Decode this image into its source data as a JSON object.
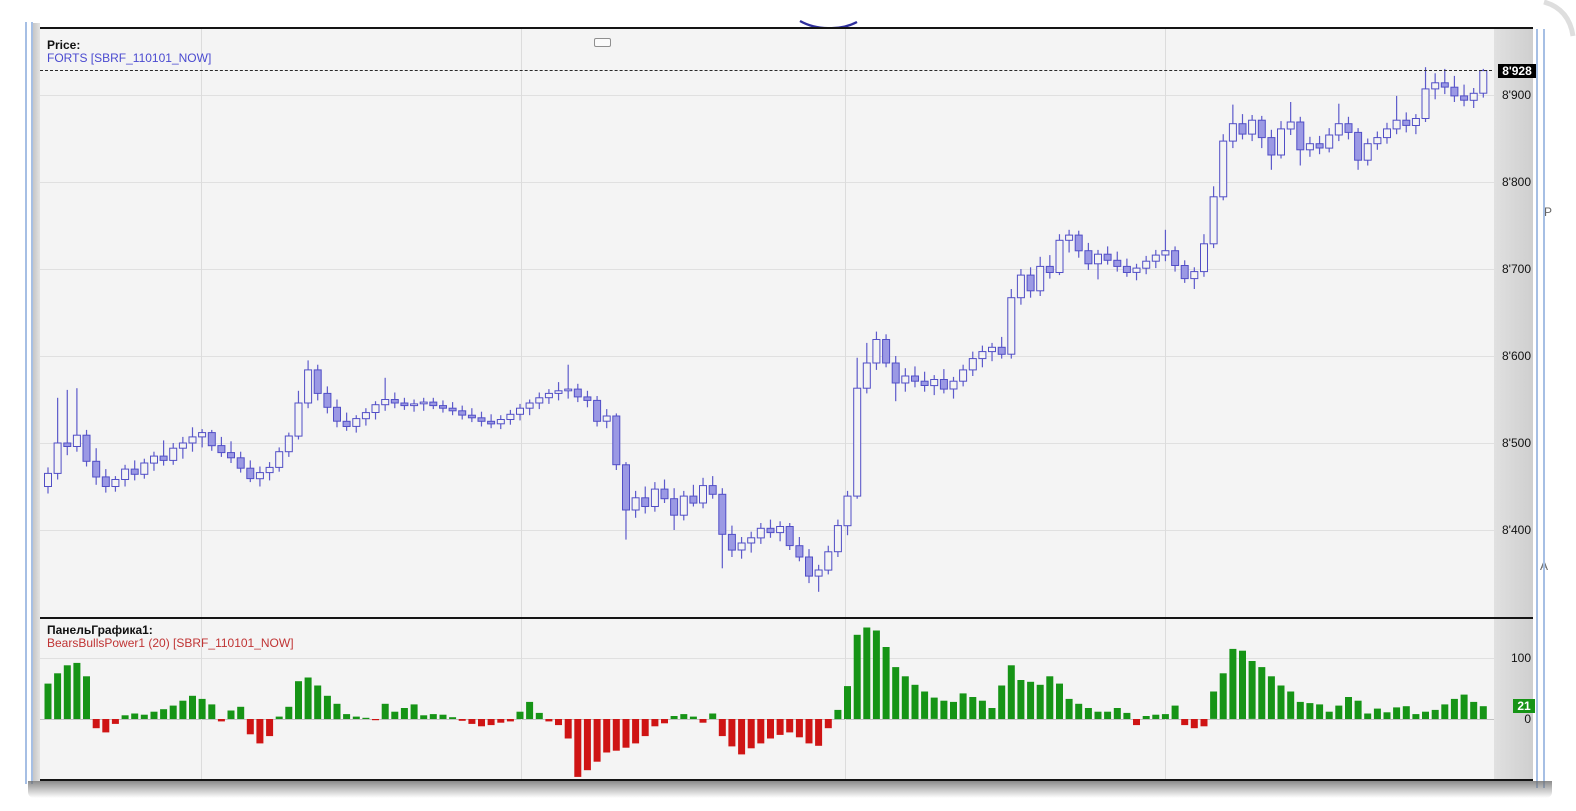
{
  "window": {
    "price_panel": {
      "title": "Price:",
      "series_label": "FORTS [SBRF_110101_NOW]",
      "series_color": "#4a4ad0"
    },
    "indicator_panel": {
      "title": "ПанельГрафика1:",
      "series_label": "BearsBullsPower1 (20) [SBRF_110101_NOW]",
      "series_color": "#c03434"
    },
    "price_axis": {
      "tick_labels": [
        "8'900",
        "8'800",
        "8'700",
        "8'600",
        "8'500",
        "8'400"
      ],
      "tick_values": [
        8900,
        8800,
        8700,
        8600,
        8500,
        8400
      ],
      "current_label": "8'928",
      "current_value": 8928
    },
    "indicator_axis": {
      "tick_labels": [
        "100",
        "0"
      ],
      "tick_values": [
        100,
        0
      ],
      "current_label": "21",
      "current_value": 21
    }
  },
  "background": {
    "fragments": [
      {
        "text": "P"
      },
      {
        "text": "A"
      }
    ]
  },
  "colors": {
    "bull_bar": "#169416",
    "bear_bar": "#cf1414",
    "candle_stroke": "#514ec6",
    "candle_wick": "#5d5acb",
    "candle_fill_down": "#9b99e4",
    "candle_fill_up": "#f4f4f4",
    "price_badge_bg": "#000000",
    "indicator_badge_bg": "#169416",
    "grid": "#e0e0e0",
    "accent_arc": "#2f2f9d"
  },
  "chart_data": [
    {
      "type": "candlestick",
      "title": "Price",
      "series": "FORTS [SBRF_110101_NOW]",
      "ylabel": "price",
      "ylim": [
        8330,
        8940
      ],
      "y_ticks": [
        8400,
        8500,
        8600,
        8700,
        8800,
        8900
      ],
      "grid": "on",
      "last_price": 8928,
      "ohlc": [
        [
          8450,
          8472,
          8442,
          8465
        ],
        [
          8465,
          8552,
          8458,
          8500
        ],
        [
          8500,
          8561,
          8486,
          8496
        ],
        [
          8496,
          8563,
          8490,
          8509
        ],
        [
          8509,
          8515,
          8473,
          8479
        ],
        [
          8479,
          8494,
          8452,
          8461
        ],
        [
          8461,
          8470,
          8443,
          8450
        ],
        [
          8450,
          8462,
          8444,
          8458
        ],
        [
          8458,
          8475,
          8450,
          8470
        ],
        [
          8470,
          8480,
          8457,
          8464
        ],
        [
          8464,
          8482,
          8459,
          8477
        ],
        [
          8477,
          8490,
          8468,
          8485
        ],
        [
          8485,
          8503,
          8474,
          8480
        ],
        [
          8480,
          8500,
          8475,
          8494
        ],
        [
          8494,
          8507,
          8482,
          8500
        ],
        [
          8500,
          8518,
          8490,
          8507
        ],
        [
          8507,
          8516,
          8495,
          8512
        ],
        [
          8512,
          8515,
          8491,
          8497
        ],
        [
          8497,
          8507,
          8484,
          8489
        ],
        [
          8489,
          8502,
          8477,
          8483
        ],
        [
          8483,
          8490,
          8466,
          8471
        ],
        [
          8471,
          8480,
          8455,
          8459
        ],
        [
          8459,
          8473,
          8450,
          8466
        ],
        [
          8466,
          8478,
          8457,
          8472
        ],
        [
          8472,
          8495,
          8467,
          8490
        ],
        [
          8490,
          8512,
          8484,
          8508
        ],
        [
          8508,
          8560,
          8504,
          8546
        ],
        [
          8546,
          8595,
          8540,
          8584
        ],
        [
          8584,
          8590,
          8549,
          8557
        ],
        [
          8557,
          8565,
          8534,
          8541
        ],
        [
          8541,
          8550,
          8518,
          8525
        ],
        [
          8525,
          8535,
          8514,
          8519
        ],
        [
          8519,
          8532,
          8512,
          8528
        ],
        [
          8528,
          8540,
          8520,
          8535
        ],
        [
          8535,
          8548,
          8527,
          8544
        ],
        [
          8544,
          8575,
          8537,
          8550
        ],
        [
          8550,
          8558,
          8540,
          8546
        ],
        [
          8546,
          8552,
          8538,
          8543
        ],
        [
          8543,
          8550,
          8536,
          8545
        ],
        [
          8545,
          8552,
          8537,
          8547
        ],
        [
          8547,
          8552,
          8539,
          8543
        ],
        [
          8543,
          8549,
          8535,
          8540
        ],
        [
          8540,
          8547,
          8532,
          8537
        ],
        [
          8537,
          8543,
          8527,
          8532
        ],
        [
          8532,
          8540,
          8524,
          8529
        ],
        [
          8529,
          8536,
          8519,
          8525
        ],
        [
          8525,
          8533,
          8517,
          8522
        ],
        [
          8522,
          8532,
          8516,
          8527
        ],
        [
          8527,
          8538,
          8521,
          8533
        ],
        [
          8533,
          8545,
          8526,
          8540
        ],
        [
          8540,
          8550,
          8532,
          8546
        ],
        [
          8546,
          8558,
          8539,
          8552
        ],
        [
          8552,
          8562,
          8545,
          8557
        ],
        [
          8557,
          8570,
          8549,
          8560
        ],
        [
          8560,
          8590,
          8551,
          8562
        ],
        [
          8562,
          8568,
          8547,
          8553
        ],
        [
          8553,
          8560,
          8541,
          8549
        ],
        [
          8549,
          8554,
          8519,
          8525
        ],
        [
          8525,
          8539,
          8517,
          8531
        ],
        [
          8531,
          8534,
          8469,
          8475
        ],
        [
          8475,
          8478,
          8389,
          8423
        ],
        [
          8423,
          8445,
          8414,
          8437
        ],
        [
          8437,
          8450,
          8419,
          8427
        ],
        [
          8427,
          8455,
          8421,
          8447
        ],
        [
          8447,
          8458,
          8431,
          8436
        ],
        [
          8436,
          8448,
          8400,
          8417
        ],
        [
          8417,
          8445,
          8411,
          8439
        ],
        [
          8439,
          8452,
          8427,
          8431
        ],
        [
          8431,
          8460,
          8425,
          8451
        ],
        [
          8451,
          8462,
          8436,
          8441
        ],
        [
          8441,
          8448,
          8356,
          8395
        ],
        [
          8395,
          8405,
          8369,
          8377
        ],
        [
          8377,
          8392,
          8367,
          8385
        ],
        [
          8385,
          8398,
          8374,
          8391
        ],
        [
          8391,
          8408,
          8384,
          8402
        ],
        [
          8402,
          8412,
          8391,
          8397
        ],
        [
          8397,
          8410,
          8387,
          8404
        ],
        [
          8404,
          8408,
          8377,
          8382
        ],
        [
          8382,
          8392,
          8364,
          8369
        ],
        [
          8369,
          8378,
          8339,
          8347
        ],
        [
          8347,
          8360,
          8329,
          8354
        ],
        [
          8354,
          8382,
          8349,
          8375
        ],
        [
          8375,
          8412,
          8369,
          8405
        ],
        [
          8405,
          8445,
          8394,
          8439
        ],
        [
          8439,
          8598,
          8436,
          8563
        ],
        [
          8563,
          8615,
          8557,
          8592
        ],
        [
          8592,
          8628,
          8584,
          8619
        ],
        [
          8619,
          8625,
          8587,
          8592
        ],
        [
          8592,
          8600,
          8548,
          8569
        ],
        [
          8569,
          8586,
          8559,
          8577
        ],
        [
          8577,
          8588,
          8564,
          8571
        ],
        [
          8571,
          8582,
          8559,
          8566
        ],
        [
          8566,
          8578,
          8555,
          8573
        ],
        [
          8573,
          8585,
          8557,
          8562
        ],
        [
          8562,
          8576,
          8551,
          8571
        ],
        [
          8571,
          8590,
          8565,
          8584
        ],
        [
          8584,
          8605,
          8577,
          8597
        ],
        [
          8597,
          8612,
          8587,
          8605
        ],
        [
          8605,
          8615,
          8594,
          8610
        ],
        [
          8610,
          8622,
          8597,
          8602
        ],
        [
          8602,
          8677,
          8597,
          8667
        ],
        [
          8667,
          8700,
          8659,
          8693
        ],
        [
          8693,
          8702,
          8667,
          8675
        ],
        [
          8675,
          8714,
          8669,
          8703
        ],
        [
          8703,
          8716,
          8689,
          8696
        ],
        [
          8696,
          8740,
          8693,
          8733
        ],
        [
          8733,
          8745,
          8719,
          8739
        ],
        [
          8739,
          8744,
          8713,
          8721
        ],
        [
          8721,
          8730,
          8699,
          8706
        ],
        [
          8706,
          8722,
          8688,
          8717
        ],
        [
          8717,
          8726,
          8705,
          8710
        ],
        [
          8710,
          8720,
          8697,
          8703
        ],
        [
          8703,
          8712,
          8691,
          8696
        ],
        [
          8696,
          8706,
          8687,
          8701
        ],
        [
          8701,
          8715,
          8694,
          8709
        ],
        [
          8709,
          8722,
          8701,
          8716
        ],
        [
          8716,
          8745,
          8709,
          8721
        ],
        [
          8721,
          8726,
          8697,
          8704
        ],
        [
          8704,
          8710,
          8684,
          8689
        ],
        [
          8689,
          8702,
          8677,
          8697
        ],
        [
          8697,
          8740,
          8691,
          8729
        ],
        [
          8729,
          8795,
          8724,
          8783
        ],
        [
          8783,
          8855,
          8779,
          8847
        ],
        [
          8847,
          8889,
          8839,
          8867
        ],
        [
          8867,
          8878,
          8849,
          8855
        ],
        [
          8855,
          8877,
          8847,
          8871
        ],
        [
          8871,
          8876,
          8839,
          8851
        ],
        [
          8851,
          8860,
          8814,
          8831
        ],
        [
          8831,
          8870,
          8827,
          8861
        ],
        [
          8861,
          8892,
          8854,
          8869
        ],
        [
          8869,
          8875,
          8819,
          8837
        ],
        [
          8837,
          8852,
          8829,
          8844
        ],
        [
          8844,
          8853,
          8832,
          8839
        ],
        [
          8839,
          8862,
          8834,
          8854
        ],
        [
          8854,
          8890,
          8847,
          8867
        ],
        [
          8867,
          8875,
          8849,
          8857
        ],
        [
          8857,
          8862,
          8814,
          8825
        ],
        [
          8825,
          8850,
          8819,
          8844
        ],
        [
          8844,
          8858,
          8837,
          8851
        ],
        [
          8851,
          8868,
          8844,
          8861
        ],
        [
          8861,
          8899,
          8855,
          8871
        ],
        [
          8871,
          8880,
          8857,
          8865
        ],
        [
          8865,
          8878,
          8855,
          8873
        ],
        [
          8873,
          8932,
          8869,
          8907
        ],
        [
          8907,
          8925,
          8895,
          8914
        ],
        [
          8914,
          8930,
          8901,
          8909
        ],
        [
          8909,
          8922,
          8892,
          8899
        ],
        [
          8899,
          8912,
          8887,
          8894
        ],
        [
          8894,
          8908,
          8885,
          8902
        ],
        [
          8902,
          8930,
          8897,
          8928
        ]
      ]
    },
    {
      "type": "bar",
      "title": "BearsBullsPower1 (20)",
      "series": "BearsBullsPower1 (20) [SBRF_110101_NOW]",
      "ylim": [
        -100,
        160
      ],
      "y_ticks": [
        0,
        100
      ],
      "grid": "on",
      "last_value": 21,
      "positive_color": "#169416",
      "negative_color": "#cf1414",
      "values": [
        58,
        75,
        88,
        92,
        70,
        -15,
        -22,
        -8,
        6,
        9,
        7,
        12,
        16,
        22,
        30,
        38,
        33,
        24,
        -4,
        14,
        20,
        -25,
        -40,
        -28,
        4,
        20,
        62,
        68,
        55,
        38,
        25,
        8,
        4,
        2,
        -2,
        25,
        12,
        18,
        24,
        6,
        8,
        7,
        3,
        -3,
        -8,
        -12,
        -10,
        -6,
        -4,
        12,
        28,
        10,
        -4,
        -10,
        -32,
        -95,
        -84,
        -70,
        -55,
        -52,
        -47,
        -40,
        -28,
        -12,
        -7,
        5,
        8,
        4,
        -6,
        9,
        -28,
        -45,
        -58,
        -48,
        -40,
        -32,
        -26,
        -22,
        -30,
        -40,
        -44,
        -15,
        15,
        54,
        138,
        150,
        145,
        118,
        85,
        70,
        56,
        45,
        35,
        30,
        28,
        42,
        36,
        30,
        18,
        55,
        88,
        64,
        61,
        56,
        70,
        58,
        33,
        25,
        18,
        12,
        12,
        18,
        10,
        -10,
        5,
        7,
        8,
        22,
        -10,
        -15,
        -12,
        45,
        75,
        115,
        112,
        95,
        85,
        70,
        55,
        45,
        28,
        26,
        24,
        12,
        22,
        36,
        30,
        9,
        17,
        11,
        19,
        21,
        8,
        12,
        15,
        24,
        33,
        40,
        28,
        21
      ]
    }
  ]
}
